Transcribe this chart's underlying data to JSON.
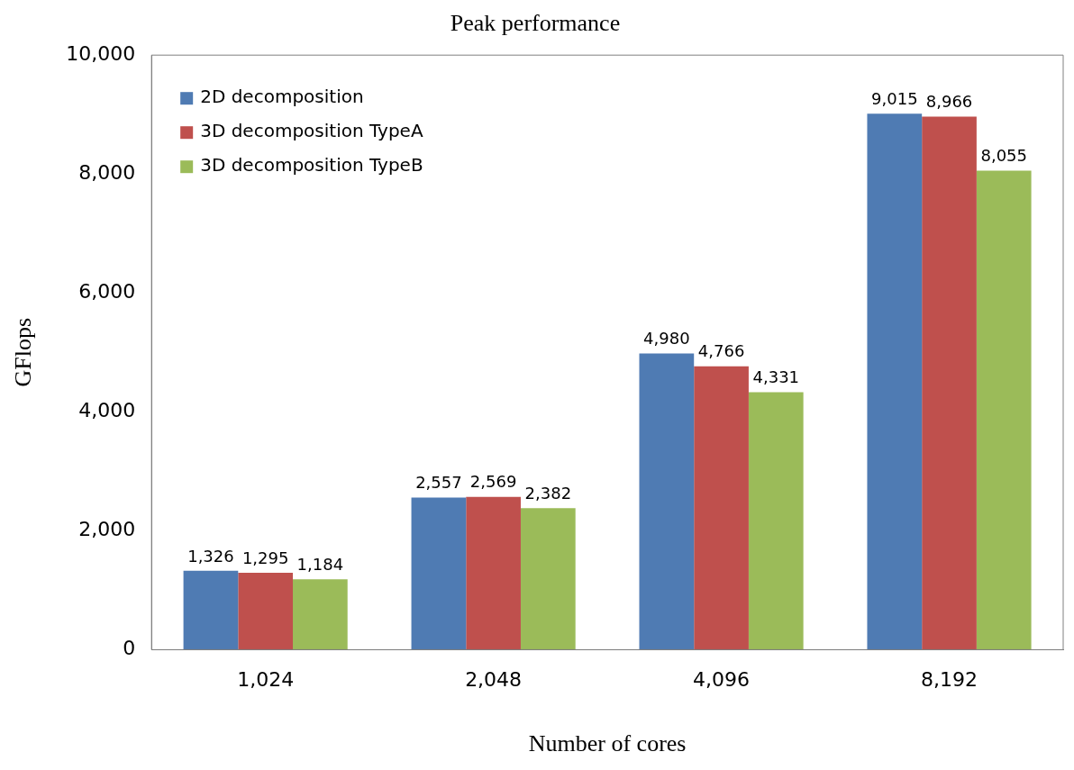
{
  "chart_data": {
    "type": "bar",
    "title": "Peak performance",
    "xlabel": "Number of cores",
    "ylabel": "GFlops",
    "categories": [
      "1,024",
      "2,048",
      "4,096",
      "8,192"
    ],
    "series": [
      {
        "name": "2D decomposition",
        "color": "#4f7bb3",
        "values": [
          1326,
          2557,
          4980,
          9015
        ],
        "value_labels": [
          "1,326",
          "2,557",
          "4,980",
          "9,015"
        ]
      },
      {
        "name": "3D decomposition TypeA",
        "color": "#bf504d",
        "values": [
          1295,
          2569,
          4766,
          8966
        ],
        "value_labels": [
          "1,295",
          "2,569",
          "4,766",
          "8,966"
        ]
      },
      {
        "name": "3D decomposition TypeB",
        "color": "#9bbb59",
        "values": [
          1184,
          2382,
          4331,
          8055
        ],
        "value_labels": [
          "1,184",
          "2,382",
          "4,331",
          "8,055"
        ]
      }
    ],
    "ylim": [
      0,
      10000
    ],
    "yticks": [
      {
        "value": 0,
        "label": "0"
      },
      {
        "value": 2000,
        "label": "2,000"
      },
      {
        "value": 4000,
        "label": "4,000"
      },
      {
        "value": 6000,
        "label": "6,000"
      },
      {
        "value": 8000,
        "label": "8,000"
      },
      {
        "value": 10000,
        "label": "10,000"
      }
    ],
    "legend": "top left",
    "grid": false
  }
}
